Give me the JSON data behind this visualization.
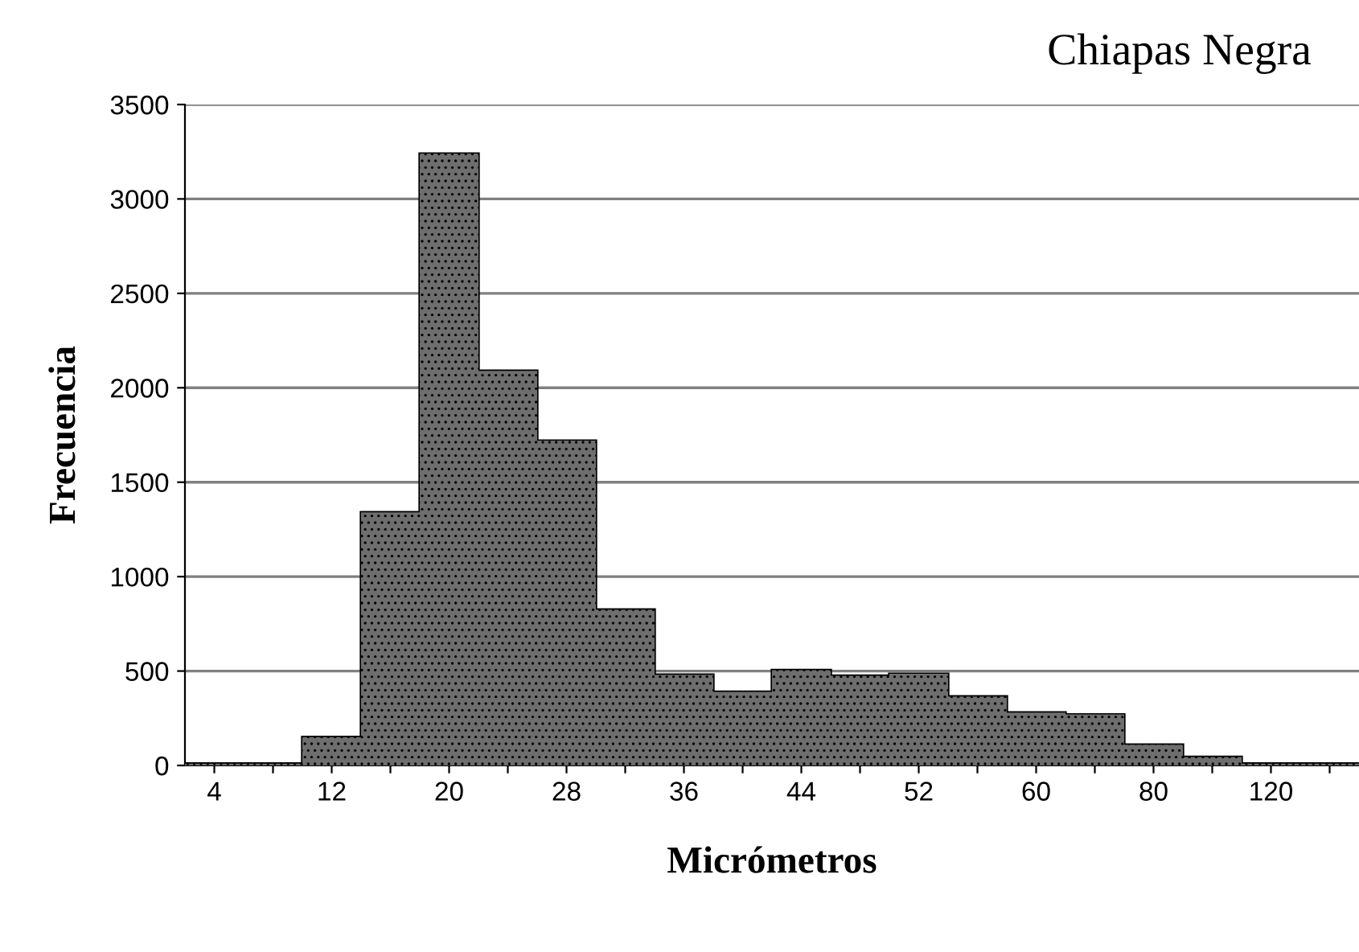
{
  "chart_data": {
    "type": "bar",
    "title": "Chiapas Negra",
    "xlabel": "Micrómetros",
    "ylabel": "Frecuencia",
    "categories": [
      "4",
      null,
      "12",
      null,
      "20",
      null,
      "28",
      null,
      "36",
      null,
      "44",
      null,
      "52",
      null,
      "60",
      null,
      "80",
      null,
      "120",
      null
    ],
    "values": [
      10,
      10,
      150,
      1340,
      3240,
      2090,
      1720,
      825,
      480,
      390,
      505,
      475,
      485,
      365,
      280,
      270,
      110,
      45,
      10,
      10
    ],
    "color": "#6e6e6e",
    "ylim": [
      0,
      3500
    ],
    "yticks": [
      0,
      500,
      1000,
      1500,
      2000,
      2500,
      3000,
      3500
    ],
    "grid": "y"
  }
}
